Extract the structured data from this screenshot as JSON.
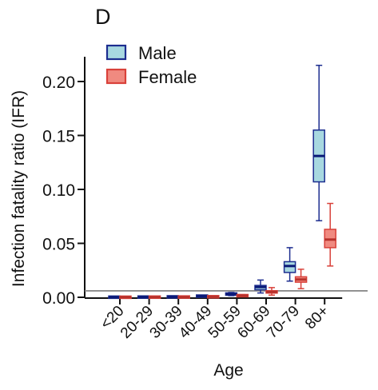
{
  "chart_data": {
    "type": "box",
    "panel_label": "D",
    "xlabel": "Age",
    "ylabel": "Infection fatality ratio (IFR)",
    "ylim": [
      0,
      0.22
    ],
    "yticks": [
      0.0,
      0.05,
      0.1,
      0.15,
      0.2
    ],
    "ytick_labels": [
      "0.00",
      "0.05",
      "0.10",
      "0.15",
      "0.20"
    ],
    "categories": [
      "<20",
      "20-29",
      "30-39",
      "40-49",
      "50-59",
      "60-69",
      "70-79",
      "80+"
    ],
    "legend_position": "top-left",
    "reference_line_y": 0.006,
    "series": [
      {
        "name": "Male",
        "edge_color": "#1c2d8f",
        "fill_color": "#a8d8e0",
        "median_color": "#0b1a78",
        "boxes": [
          {
            "min": 0.0,
            "q1": 0.0,
            "median": 0.0001,
            "q3": 0.0002,
            "max": 0.0003
          },
          {
            "min": 0.0001,
            "q1": 0.0001,
            "median": 0.0002,
            "q3": 0.0003,
            "max": 0.0004
          },
          {
            "min": 0.0002,
            "q1": 0.0003,
            "median": 0.0004,
            "q3": 0.0005,
            "max": 0.0007
          },
          {
            "min": 0.0006,
            "q1": 0.0009,
            "median": 0.0011,
            "q3": 0.0013,
            "max": 0.0016
          },
          {
            "min": 0.0015,
            "q1": 0.0025,
            "median": 0.003,
            "q3": 0.0035,
            "max": 0.0045
          },
          {
            "min": 0.004,
            "q1": 0.007,
            "median": 0.0095,
            "q3": 0.011,
            "max": 0.016
          },
          {
            "min": 0.015,
            "q1": 0.023,
            "median": 0.029,
            "q3": 0.033,
            "max": 0.046
          },
          {
            "min": 0.071,
            "q1": 0.107,
            "median": 0.131,
            "q3": 0.155,
            "max": 0.215
          }
        ]
      },
      {
        "name": "Female",
        "edge_color": "#d9413a",
        "fill_color": "#f08a80",
        "median_color": "#b8322c",
        "boxes": [
          {
            "min": 0.0,
            "q1": 0.0,
            "median": 0.0001,
            "q3": 0.0001,
            "max": 0.0002
          },
          {
            "min": 0.0,
            "q1": 0.0001,
            "median": 0.0001,
            "q3": 0.0002,
            "max": 0.0003
          },
          {
            "min": 0.0001,
            "q1": 0.0002,
            "median": 0.0002,
            "q3": 0.0003,
            "max": 0.0004
          },
          {
            "min": 0.0003,
            "q1": 0.0004,
            "median": 0.0005,
            "q3": 0.0006,
            "max": 0.0008
          },
          {
            "min": 0.0008,
            "q1": 0.0012,
            "median": 0.0015,
            "q3": 0.0018,
            "max": 0.0025
          },
          {
            "min": 0.002,
            "q1": 0.004,
            "median": 0.005,
            "q3": 0.006,
            "max": 0.009
          },
          {
            "min": 0.008,
            "q1": 0.014,
            "median": 0.0165,
            "q3": 0.019,
            "max": 0.026
          },
          {
            "min": 0.029,
            "q1": 0.046,
            "median": 0.0535,
            "q3": 0.063,
            "max": 0.087
          }
        ]
      }
    ]
  }
}
